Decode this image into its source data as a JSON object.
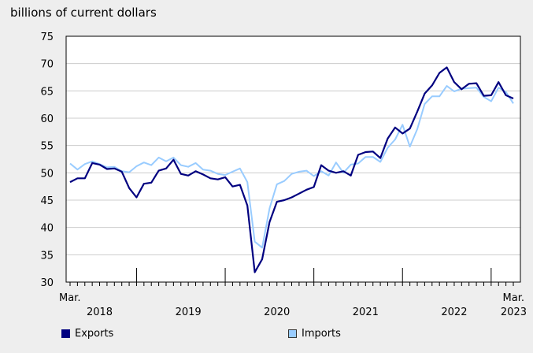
{
  "chart_data": {
    "type": "line",
    "ylabel": "billions of current dollars",
    "ylim": [
      30,
      75
    ],
    "yticks": [
      30,
      35,
      40,
      45,
      50,
      55,
      60,
      65,
      70,
      75
    ],
    "x_start": "2018-03",
    "x_end": "2023-03",
    "x_tick_labels": [
      {
        "label": "Mar.",
        "month": "2018-03"
      },
      {
        "label": "2018",
        "month": "2018-07"
      },
      {
        "label": "2019",
        "month": "2019-07"
      },
      {
        "label": "2020",
        "month": "2020-07"
      },
      {
        "label": "2021",
        "month": "2021-07"
      },
      {
        "label": "2022",
        "month": "2022-07"
      },
      {
        "label": "Mar.",
        "month": "2023-03"
      },
      {
        "label": "2023",
        "month": "2023-03"
      }
    ],
    "year_boundaries": [
      "2018-12",
      "2019-12",
      "2020-12",
      "2021-12",
      "2022-12"
    ],
    "grid": true,
    "legend_position": "bottom",
    "series": [
      {
        "name": "Exports",
        "color": "#000080",
        "values": [
          48.3,
          49.0,
          49.0,
          51.8,
          51.5,
          50.7,
          50.8,
          50.2,
          47.2,
          45.5,
          48.0,
          48.2,
          50.4,
          50.8,
          52.4,
          49.8,
          49.5,
          50.3,
          49.7,
          49.0,
          48.8,
          49.2,
          47.5,
          47.8,
          44.0,
          31.8,
          34.2,
          41.0,
          44.7,
          45.0,
          45.5,
          46.2,
          46.9,
          47.4,
          51.4,
          50.4,
          50.0,
          50.3,
          49.5,
          53.3,
          53.8,
          53.9,
          52.7,
          56.3,
          58.3,
          57.2,
          58.1,
          61.2,
          64.5,
          66.0,
          68.3,
          69.3,
          66.6,
          65.3,
          66.3,
          66.4,
          64.1,
          64.2,
          66.6,
          64.2,
          63.6
        ]
      },
      {
        "name": "Imports",
        "color": "#99ccff",
        "values": [
          51.7,
          50.6,
          51.6,
          52.1,
          51.6,
          51.0,
          51.1,
          50.3,
          50.1,
          51.2,
          51.9,
          51.4,
          52.8,
          52.1,
          52.8,
          51.4,
          51.1,
          51.8,
          50.6,
          50.4,
          49.8,
          49.6,
          50.2,
          50.8,
          48.3,
          37.4,
          36.3,
          43.5,
          47.9,
          48.5,
          49.8,
          50.2,
          50.4,
          49.4,
          50.3,
          49.5,
          51.9,
          50.0,
          51.5,
          51.7,
          52.9,
          52.9,
          52.0,
          54.6,
          56.1,
          58.8,
          54.8,
          58.0,
          62.6,
          64.0,
          64.0,
          65.9,
          64.9,
          65.4,
          65.5,
          65.6,
          63.9,
          63.1,
          65.6,
          64.8,
          62.7
        ]
      }
    ]
  }
}
